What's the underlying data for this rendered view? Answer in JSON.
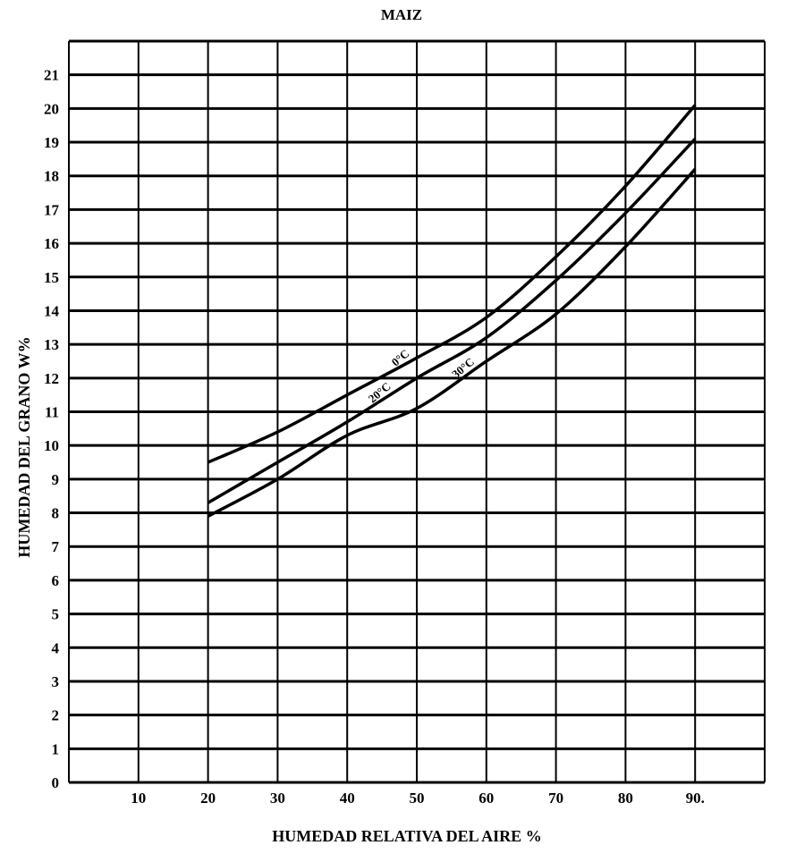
{
  "chart_data": {
    "type": "line",
    "title": "MAIZ",
    "xlabel": "HUMEDAD RELATIVA DEL AIRE %",
    "ylabel": "HUMEDAD DEL GRANO W%",
    "xlim": [
      0,
      100
    ],
    "ylim": [
      0,
      22
    ],
    "grid": true,
    "x_ticks": [
      10,
      20,
      30,
      40,
      50,
      60,
      70,
      80,
      90
    ],
    "x_tick_labels": [
      "10",
      "20",
      "30",
      "40",
      "50",
      "60",
      "70",
      "80",
      "90."
    ],
    "y_ticks": [
      0,
      1,
      2,
      3,
      4,
      5,
      6,
      7,
      8,
      9,
      10,
      11,
      12,
      13,
      14,
      15,
      16,
      17,
      18,
      19,
      20,
      21
    ],
    "y_tick_labels": [
      "0",
      "1",
      "2",
      "3",
      "4",
      "5",
      "6",
      "7",
      "8",
      "9",
      "10",
      "11",
      "12",
      "13",
      "14",
      "15",
      "16",
      "17",
      "18",
      "19",
      "20",
      "21"
    ],
    "x": [
      20,
      30,
      40,
      50,
      60,
      70,
      80,
      90
    ],
    "series": [
      {
        "name": "0°C",
        "values": [
          9.5,
          10.4,
          11.5,
          12.6,
          13.8,
          15.6,
          17.7,
          20.1
        ]
      },
      {
        "name": "20°C",
        "values": [
          8.3,
          9.5,
          10.7,
          12.0,
          13.2,
          14.9,
          16.9,
          19.1
        ]
      },
      {
        "name": "30°C",
        "values": [
          7.9,
          9.0,
          10.3,
          11.1,
          12.5,
          13.9,
          15.9,
          18.2
        ]
      }
    ]
  }
}
